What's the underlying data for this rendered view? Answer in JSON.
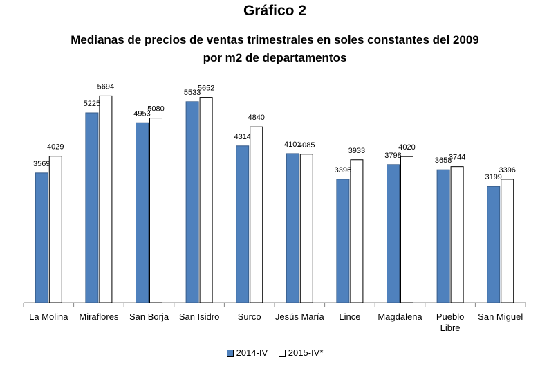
{
  "chart_data": {
    "type": "bar",
    "heading": "Gráfico 2",
    "title": "Medianas de precios de ventas trimestrales en soles constantes del 2009 por m2 de departamentos",
    "categories": [
      "La Molina",
      "Miraflores",
      "San Borja",
      "San Isidro",
      "Surco",
      "Jesús María",
      "Lince",
      "Magdalena",
      "Pueblo Libre",
      "San Miguel"
    ],
    "series": [
      {
        "name": "2014-IV",
        "color": "#4f81bd",
        "values": [
          3569,
          5225,
          4953,
          5533,
          4314,
          4101,
          3396,
          3798,
          3658,
          3199
        ]
      },
      {
        "name": "2015-IV*",
        "color": "#ffffff",
        "values": [
          4029,
          5694,
          5080,
          5652,
          4840,
          4085,
          3933,
          4020,
          3744,
          3396
        ]
      }
    ],
    "ylim": [
      0,
      6000
    ],
    "grid": false,
    "legend": "bottom"
  }
}
